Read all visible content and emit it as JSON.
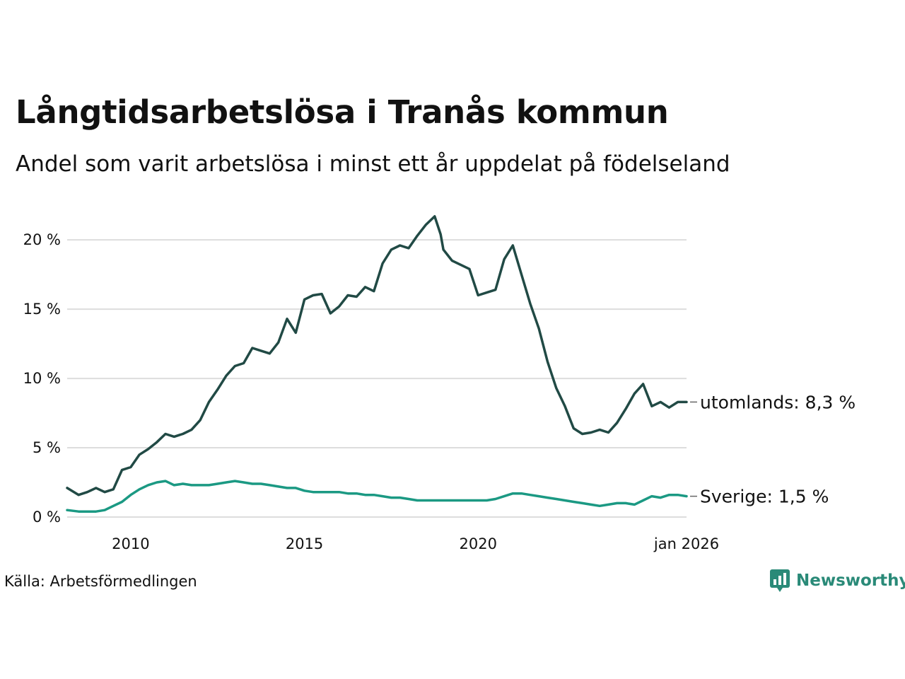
{
  "title": "Långtidsarbetslösa i Tranås kommun",
  "subtitle": "Andel som varit arbetslösa i minst ett år uppdelat på födelseland",
  "source": "Källa: Arbetsförmedlingen",
  "brand": "Newsworthy",
  "colors": {
    "utomlands": "#214a45",
    "sverige": "#1b9983",
    "grid": "#dddddd",
    "brand": "#2a8a78"
  },
  "chart_data": {
    "type": "line",
    "title": "Långtidsarbetslösa i Tranås kommun",
    "xlabel": "",
    "ylabel": "",
    "xlim": [
      2008.17,
      2026.0
    ],
    "ylim": [
      0,
      22
    ],
    "y_ticks": [
      0,
      5,
      10,
      15,
      20
    ],
    "y_tick_labels": [
      "0 %",
      "5 %",
      "10 %",
      "15 %",
      "20 %"
    ],
    "x_ticks": [
      2010,
      2015,
      2020,
      2026
    ],
    "x_tick_labels": [
      "2010",
      "2015",
      "2020",
      "jan 2026"
    ],
    "grid": true,
    "series": [
      {
        "name": "utomlands",
        "end_label": "utomlands: 8,3 %",
        "x": [
          2008.17,
          2008.5,
          2008.75,
          2009.0,
          2009.25,
          2009.5,
          2009.75,
          2010.0,
          2010.25,
          2010.5,
          2010.75,
          2011.0,
          2011.25,
          2011.5,
          2011.75,
          2012.0,
          2012.25,
          2012.5,
          2012.75,
          2013.0,
          2013.25,
          2013.5,
          2013.75,
          2014.0,
          2014.25,
          2014.5,
          2014.75,
          2015.0,
          2015.25,
          2015.5,
          2015.75,
          2016.0,
          2016.25,
          2016.5,
          2016.75,
          2017.0,
          2017.25,
          2017.5,
          2017.75,
          2018.0,
          2018.25,
          2018.5,
          2018.75,
          2018.92,
          2019.0,
          2019.25,
          2019.5,
          2019.75,
          2020.0,
          2020.25,
          2020.5,
          2020.75,
          2021.0,
          2021.25,
          2021.5,
          2021.75,
          2022.0,
          2022.25,
          2022.5,
          2022.75,
          2023.0,
          2023.25,
          2023.5,
          2023.75,
          2024.0,
          2024.25,
          2024.5,
          2024.75,
          2025.0,
          2025.25,
          2025.5,
          2025.75,
          2026.0
        ],
        "values": [
          2.1,
          1.6,
          1.8,
          2.1,
          1.8,
          2.0,
          3.4,
          3.6,
          4.5,
          4.9,
          5.4,
          6.0,
          5.8,
          6.0,
          6.3,
          7.0,
          8.3,
          9.2,
          10.2,
          10.9,
          11.1,
          12.2,
          12.0,
          11.8,
          12.6,
          14.3,
          13.3,
          15.7,
          16.0,
          16.1,
          14.7,
          15.2,
          16.0,
          15.9,
          16.6,
          16.3,
          18.3,
          19.3,
          19.6,
          19.4,
          20.3,
          21.1,
          21.7,
          20.4,
          19.3,
          18.5,
          18.2,
          17.9,
          16.0,
          16.2,
          16.4,
          18.6,
          19.6,
          17.5,
          15.4,
          13.6,
          11.2,
          9.3,
          8.0,
          6.4,
          6.0,
          6.1,
          6.3,
          6.1,
          6.8,
          7.8,
          8.9,
          9.6,
          8.0,
          8.3,
          7.9,
          8.3,
          8.3
        ]
      },
      {
        "name": "Sverige",
        "end_label": "Sverige: 1,5 %",
        "x": [
          2008.17,
          2008.5,
          2008.75,
          2009.0,
          2009.25,
          2009.5,
          2009.75,
          2010.0,
          2010.25,
          2010.5,
          2010.75,
          2011.0,
          2011.25,
          2011.5,
          2011.75,
          2012.0,
          2012.25,
          2012.5,
          2012.75,
          2013.0,
          2013.25,
          2013.5,
          2013.75,
          2014.0,
          2014.25,
          2014.5,
          2014.75,
          2015.0,
          2015.25,
          2015.5,
          2015.75,
          2016.0,
          2016.25,
          2016.5,
          2016.75,
          2017.0,
          2017.25,
          2017.5,
          2017.75,
          2018.0,
          2018.25,
          2018.5,
          2018.75,
          2019.0,
          2019.25,
          2019.5,
          2019.75,
          2020.0,
          2020.25,
          2020.5,
          2020.75,
          2021.0,
          2021.25,
          2021.5,
          2021.75,
          2022.0,
          2022.25,
          2022.5,
          2022.75,
          2023.0,
          2023.25,
          2023.5,
          2023.75,
          2024.0,
          2024.25,
          2024.5,
          2024.75,
          2025.0,
          2025.25,
          2025.5,
          2025.75,
          2026.0
        ],
        "values": [
          0.5,
          0.4,
          0.4,
          0.4,
          0.5,
          0.8,
          1.1,
          1.6,
          2.0,
          2.3,
          2.5,
          2.6,
          2.3,
          2.4,
          2.3,
          2.3,
          2.3,
          2.4,
          2.5,
          2.6,
          2.5,
          2.4,
          2.4,
          2.3,
          2.2,
          2.1,
          2.1,
          1.9,
          1.8,
          1.8,
          1.8,
          1.8,
          1.7,
          1.7,
          1.6,
          1.6,
          1.5,
          1.4,
          1.4,
          1.3,
          1.2,
          1.2,
          1.2,
          1.2,
          1.2,
          1.2,
          1.2,
          1.2,
          1.2,
          1.3,
          1.5,
          1.7,
          1.7,
          1.6,
          1.5,
          1.4,
          1.3,
          1.2,
          1.1,
          1.0,
          0.9,
          0.8,
          0.9,
          1.0,
          1.0,
          0.9,
          1.2,
          1.5,
          1.4,
          1.6,
          1.6,
          1.5
        ]
      }
    ]
  }
}
